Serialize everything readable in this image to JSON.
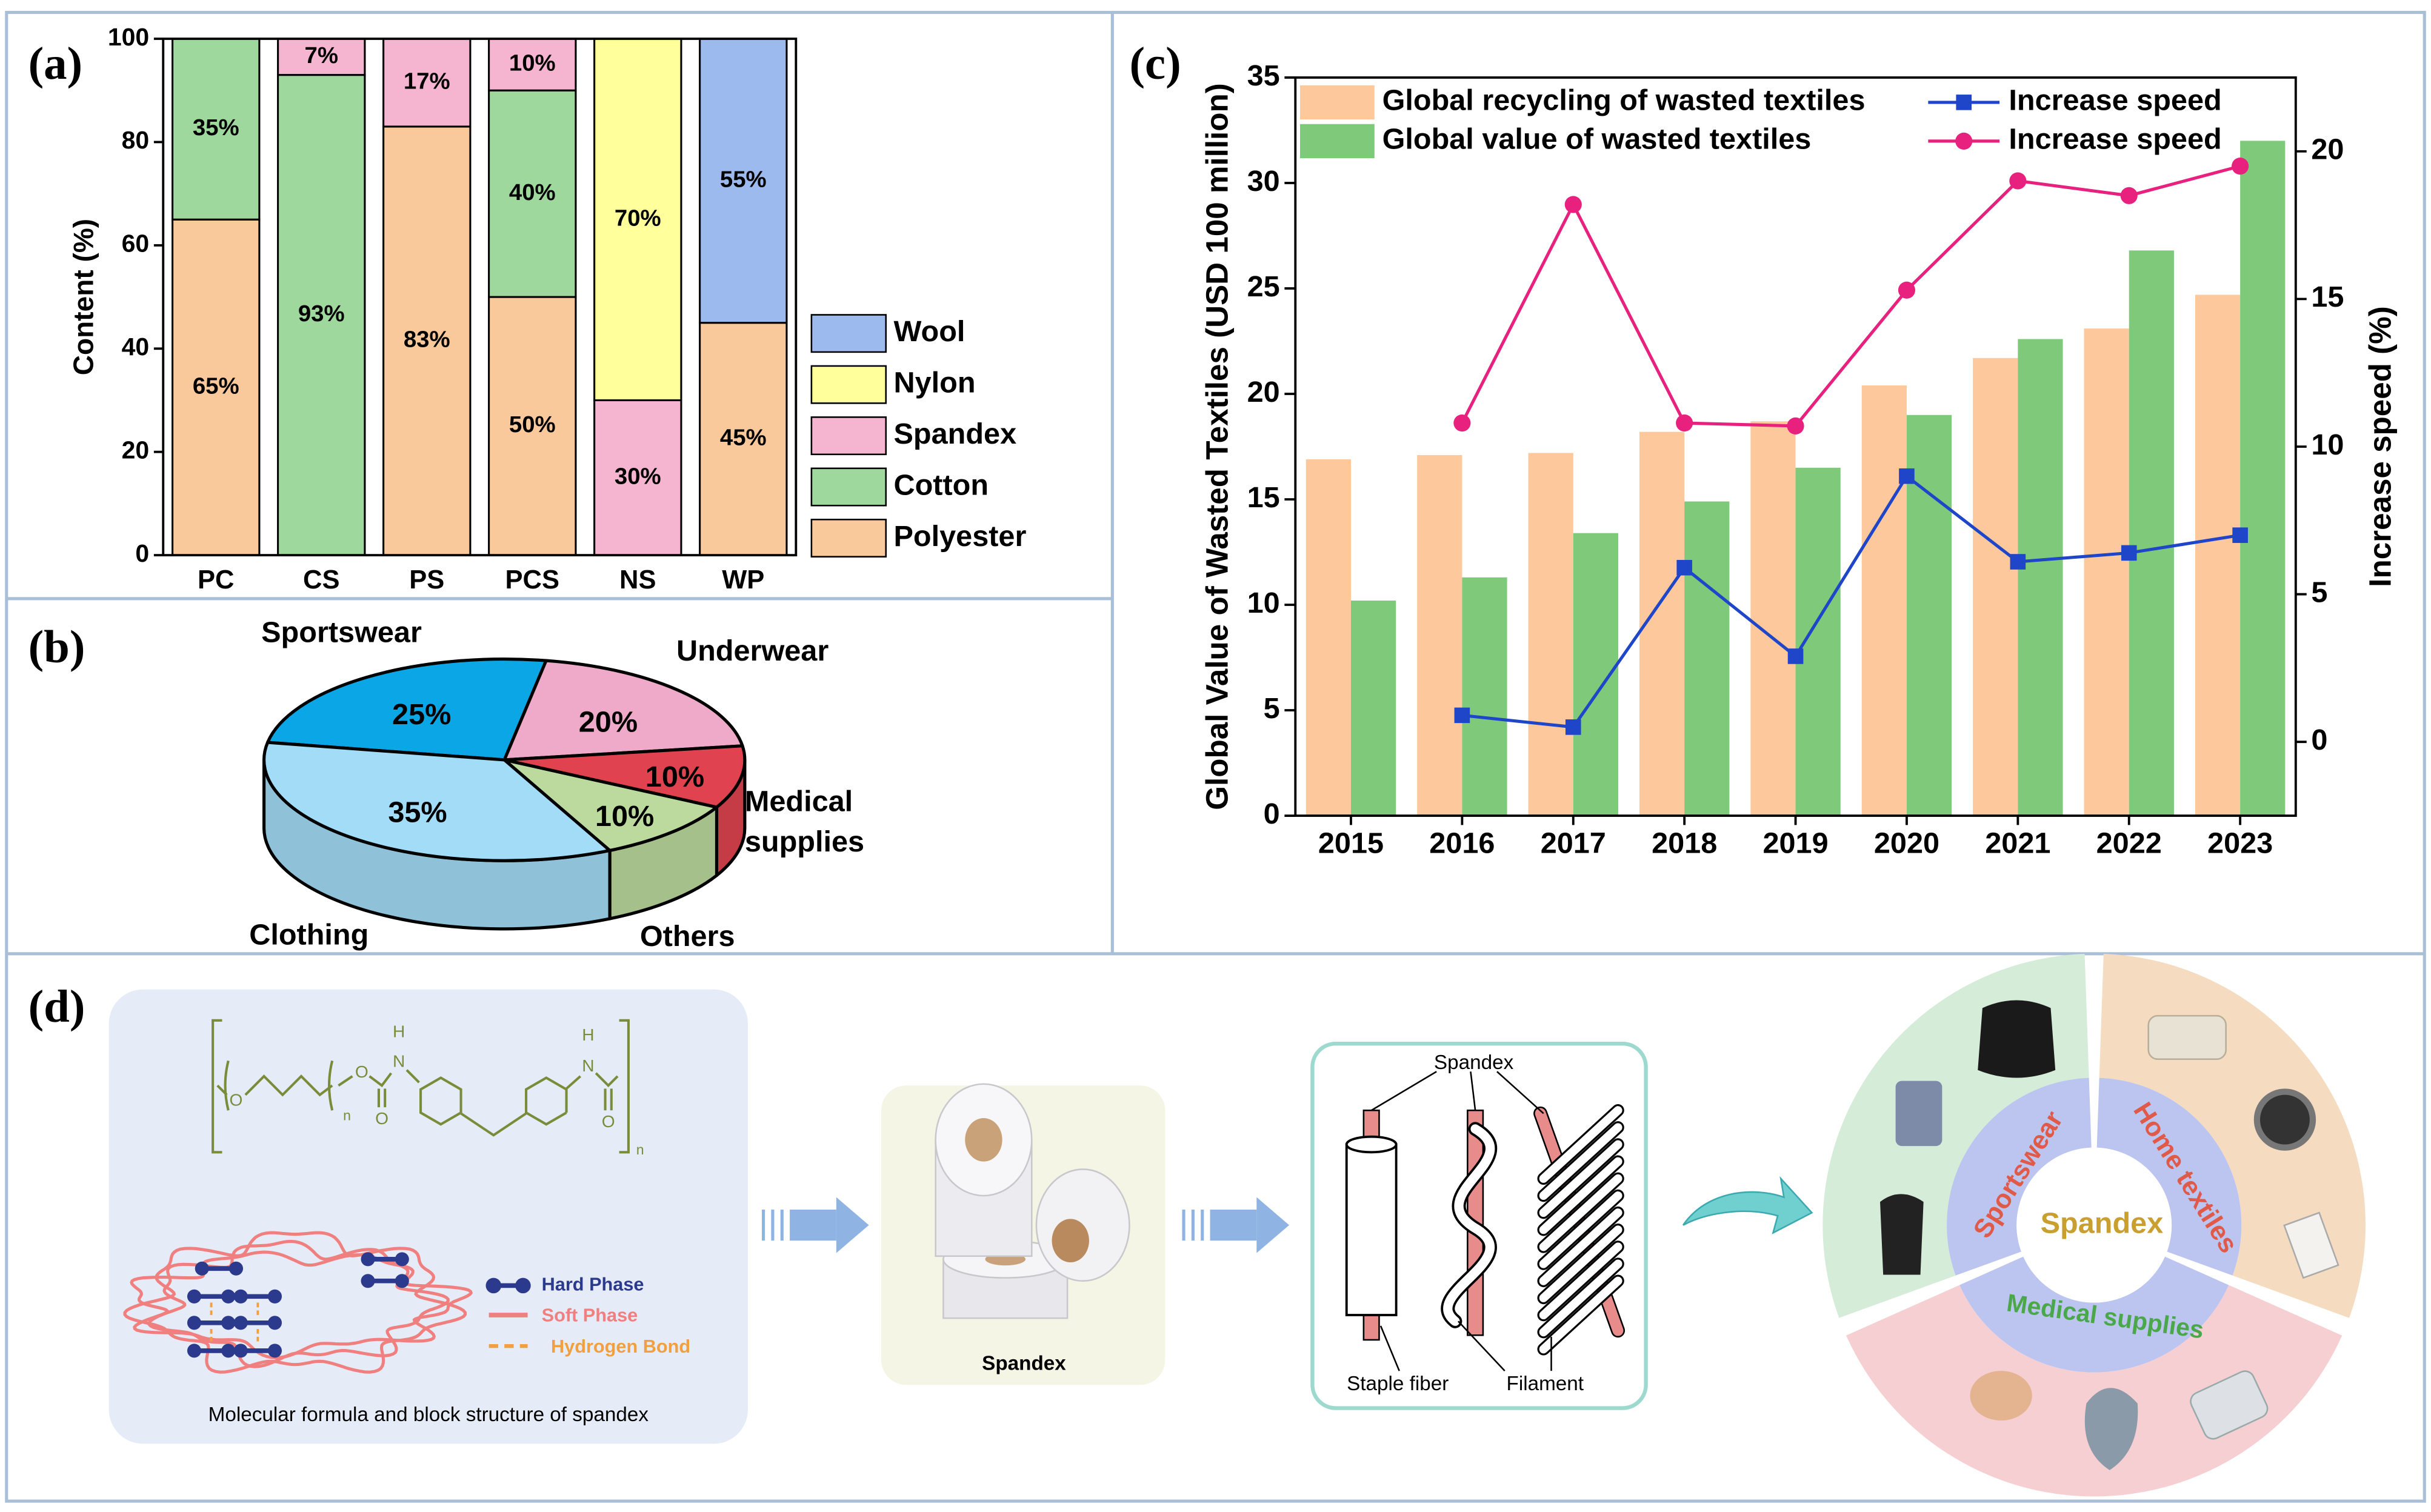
{
  "chart_data": [
    {
      "type": "stacked_bar",
      "panel": "(a)",
      "y_label": "Content (%)",
      "categories": [
        "PC",
        "CS",
        "PS",
        "PCS",
        "NS",
        "WP"
      ],
      "series": [
        {
          "name": "Polyester",
          "color": "#f9c89b",
          "values": [
            65,
            0,
            83,
            50,
            0,
            45
          ],
          "value_labels": [
            "65%",
            null,
            "83%",
            "50%",
            null,
            "45%"
          ]
        },
        {
          "name": "Cotton",
          "color": "#9fd89c",
          "values": [
            35,
            93,
            0,
            40,
            0,
            0
          ],
          "value_labels": [
            "35%",
            "93%",
            null,
            "40%",
            null,
            null
          ]
        },
        {
          "name": "Spandex",
          "color": "#f5b5d0",
          "values": [
            0,
            7,
            17,
            10,
            30,
            0
          ],
          "value_labels": [
            null,
            "7%",
            "17%",
            "10%",
            "30%",
            null
          ]
        },
        {
          "name": "Nylon",
          "color": "#ffff9c",
          "values": [
            0,
            0,
            0,
            0,
            70,
            0
          ],
          "value_labels": [
            null,
            null,
            null,
            null,
            "70%",
            null
          ]
        },
        {
          "name": "Wool",
          "color": "#9dbaee",
          "values": [
            0,
            0,
            0,
            0,
            0,
            55
          ],
          "value_labels": [
            null,
            null,
            null,
            null,
            null,
            "55%"
          ]
        }
      ],
      "ylim": [
        0,
        100
      ],
      "yticks": [
        0,
        20,
        40,
        60,
        80,
        100
      ]
    },
    {
      "type": "pie",
      "panel": "(b)",
      "categories": [
        "Sportswear",
        "Underwear",
        "Medical supplies",
        "Others",
        "Clothing"
      ],
      "values": [
        25,
        20,
        10,
        10,
        35
      ],
      "value_labels": [
        "25%",
        "20%",
        "10%",
        "10%",
        "35%"
      ],
      "colors": [
        "#0aa6e6",
        "#eeaac8",
        "#e0434f",
        "#bcda9e",
        "#a2dcf7"
      ]
    },
    {
      "type": "bar_line",
      "panel": "(c)",
      "y_label": "Global Value of Wasted Textiles (USD 100 million)",
      "y2_label": "Increase speed (%)",
      "categories": [
        "2015",
        "2016",
        "2017",
        "2018",
        "2019",
        "2020",
        "2021",
        "2022",
        "2023"
      ],
      "series": [
        {
          "name": "Global recycling of wasted textiles",
          "kind": "bar",
          "color": "#fcc89c",
          "values": [
            16.9,
            17.1,
            17.2,
            18.2,
            18.7,
            20.4,
            21.7,
            23.1,
            24.7
          ]
        },
        {
          "name": "Global value of wasted textiles",
          "kind": "bar",
          "color": "#7fc97b",
          "values": [
            10.2,
            11.3,
            13.4,
            14.9,
            16.5,
            19.0,
            22.6,
            26.8,
            32.0
          ]
        },
        {
          "name": "Increase speed",
          "kind": "line",
          "marker": "square",
          "axis": "y2",
          "color": "#1f45c8",
          "values": [
            null,
            0.9,
            0.5,
            5.9,
            2.9,
            9.0,
            6.1,
            6.4,
            7.0
          ]
        },
        {
          "name": "Increase speed",
          "kind": "line",
          "marker": "circle",
          "axis": "y2",
          "color": "#e8207e",
          "values": [
            null,
            10.8,
            18.2,
            10.8,
            10.7,
            15.3,
            19.0,
            18.5,
            19.5
          ]
        }
      ],
      "ylim": [
        0,
        35
      ],
      "yticks": [
        0,
        5,
        10,
        15,
        20,
        25,
        30,
        35
      ],
      "y2lim": [
        -2.5,
        22.5
      ],
      "y2ticks": [
        0,
        5,
        10,
        15,
        20
      ]
    }
  ],
  "diagram": {
    "panel": "(d)",
    "formula_atoms": [
      "O",
      "O",
      "O",
      "N",
      "H",
      "N",
      "H",
      "O"
    ],
    "formula_subscripts": [
      "n",
      "n"
    ],
    "legend": [
      "Hard Phase",
      "Soft Phase",
      "Hydrogen Bond"
    ],
    "caption": "Molecular formula and block structure of spandex",
    "product": "Spandex",
    "fiber_labels": {
      "spandex": "Spandex",
      "staple": "Staple fiber",
      "filament": "Filament"
    },
    "applications": {
      "center": "Spandex",
      "sectors": [
        "Sportswear",
        "Home textiles",
        "Medical supplies"
      ]
    }
  }
}
